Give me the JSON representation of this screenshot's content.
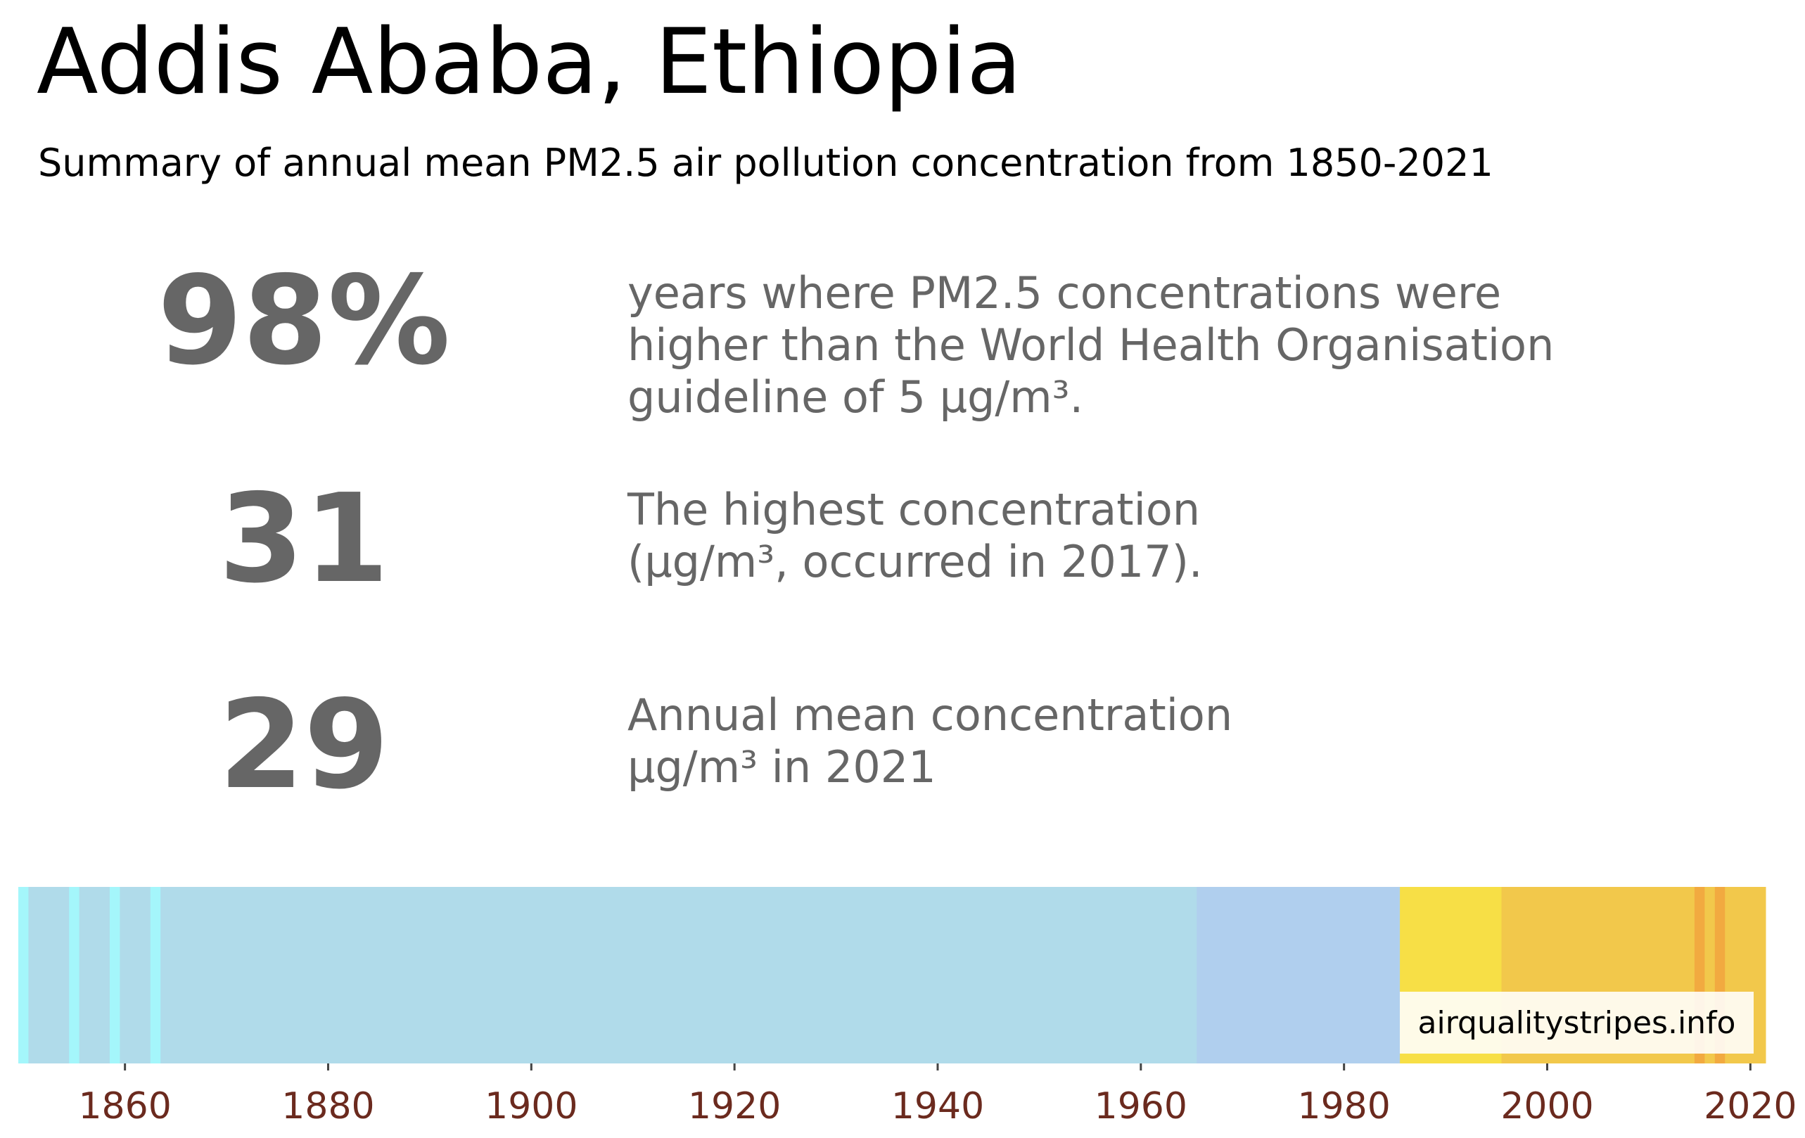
{
  "title": "Addis Ababa, Ethiopia",
  "subtitle": "Summary of annual mean PM2.5 air pollution concentration from 1850-2021",
  "stats": [
    {
      "value": "98%",
      "lines": [
        "years where PM2.5 concentrations were",
        "higher than the World Health Organisation",
        "guideline of 5 µg/m³."
      ]
    },
    {
      "value": "31",
      "lines": [
        "The highest concentration",
        "(µg/m³, occurred in 2017)."
      ]
    },
    {
      "value": "29",
      "lines": [
        "Annual mean concentration",
        "µg/m³ in 2021"
      ]
    }
  ],
  "credit": "airqualitystripes.info",
  "colors": {
    "stat_text": "#666666",
    "tick_label": "#6b2a1e"
  },
  "chart_data": {
    "type": "heatmap",
    "x_range": [
      1850,
      2021
    ],
    "xticks": [
      "1860",
      "1880",
      "1900",
      "1920",
      "1940",
      "1960",
      "1980",
      "2000",
      "2020"
    ],
    "stripes": [
      {
        "from": 1850,
        "to": 1851,
        "color": "#a4f6fb"
      },
      {
        "from": 1851,
        "to": 1855,
        "color": "#b0dbea"
      },
      {
        "from": 1855,
        "to": 1856,
        "color": "#a4f6fb"
      },
      {
        "from": 1856,
        "to": 1859,
        "color": "#b0dbea"
      },
      {
        "from": 1859,
        "to": 1860,
        "color": "#a4f6fb"
      },
      {
        "from": 1860,
        "to": 1863,
        "color": "#b0dbea"
      },
      {
        "from": 1863,
        "to": 1864,
        "color": "#a4f6fb"
      },
      {
        "from": 1864,
        "to": 1966,
        "color": "#b0dbea"
      },
      {
        "from": 1966,
        "to": 1986,
        "color": "#b0cfee"
      },
      {
        "from": 1986,
        "to": 1996,
        "color": "#f7df46"
      },
      {
        "from": 1996,
        "to": 2015,
        "color": "#f2c84b"
      },
      {
        "from": 2015,
        "to": 2016,
        "color": "#f2aa40"
      },
      {
        "from": 2016,
        "to": 2017,
        "color": "#f2c84b"
      },
      {
        "from": 2017,
        "to": 2018,
        "color": "#f2aa40"
      },
      {
        "from": 2018,
        "to": 2022,
        "color": "#f2c84b"
      }
    ]
  }
}
